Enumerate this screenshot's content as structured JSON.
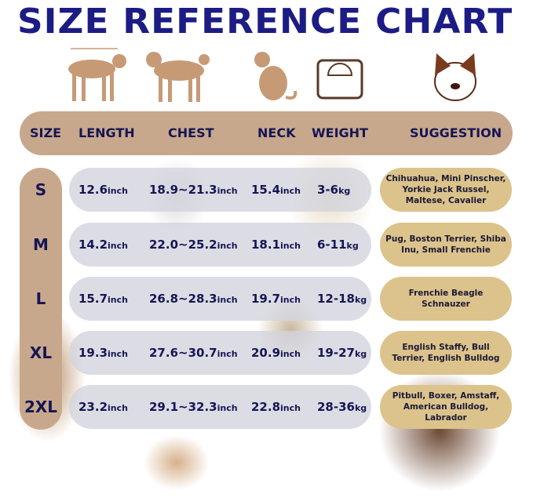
{
  "title": "SIZE REFERENCE CHART",
  "icons": [
    "dog-length-icon",
    "dog-chest-icon",
    "dog-neck-icon",
    "scale-icon",
    "dog-face-icon"
  ],
  "colors": {
    "title": "#1c1c84",
    "header": "#c8a88c",
    "suggestion": "#dcc38c",
    "text": "#151555"
  },
  "headers": [
    "SIZE",
    "LENGTH",
    "CHEST",
    "NECK",
    "WEIGHT",
    "SUGGESTION"
  ],
  "rows": [
    {
      "size": "S",
      "length": "12.6",
      "chest": "18.9~21.3",
      "neck": "15.4",
      "weight": "3-6",
      "suggestion": "Chihuahua, Mini Pinscher, Yorkie Jack Russel, Maltese, Cavalier"
    },
    {
      "size": "M",
      "length": "14.2",
      "chest": "22.0~25.2",
      "neck": "18.1",
      "weight": "6-11",
      "suggestion": "Pug, Boston Terrier, Shiba Inu, Small Frenchie"
    },
    {
      "size": "L",
      "length": "15.7",
      "chest": "26.8~28.3",
      "neck": "19.7",
      "weight": "12-18",
      "suggestion": "Frenchie Beagle Schnauzer"
    },
    {
      "size": "XL",
      "length": "19.3",
      "chest": "27.6~30.7",
      "neck": "20.9",
      "weight": "19-27",
      "suggestion": "English Staffy, Bull Terrier, English Bulldog"
    },
    {
      "size": "2XL",
      "length": "23.2",
      "chest": "29.1~32.3",
      "neck": "22.8",
      "weight": "28-36",
      "suggestion": "Pitbull, Boxer, Amstaff, American Bulldog, Labrador"
    }
  ],
  "units": {
    "inch": "inch",
    "kg": "kg"
  }
}
